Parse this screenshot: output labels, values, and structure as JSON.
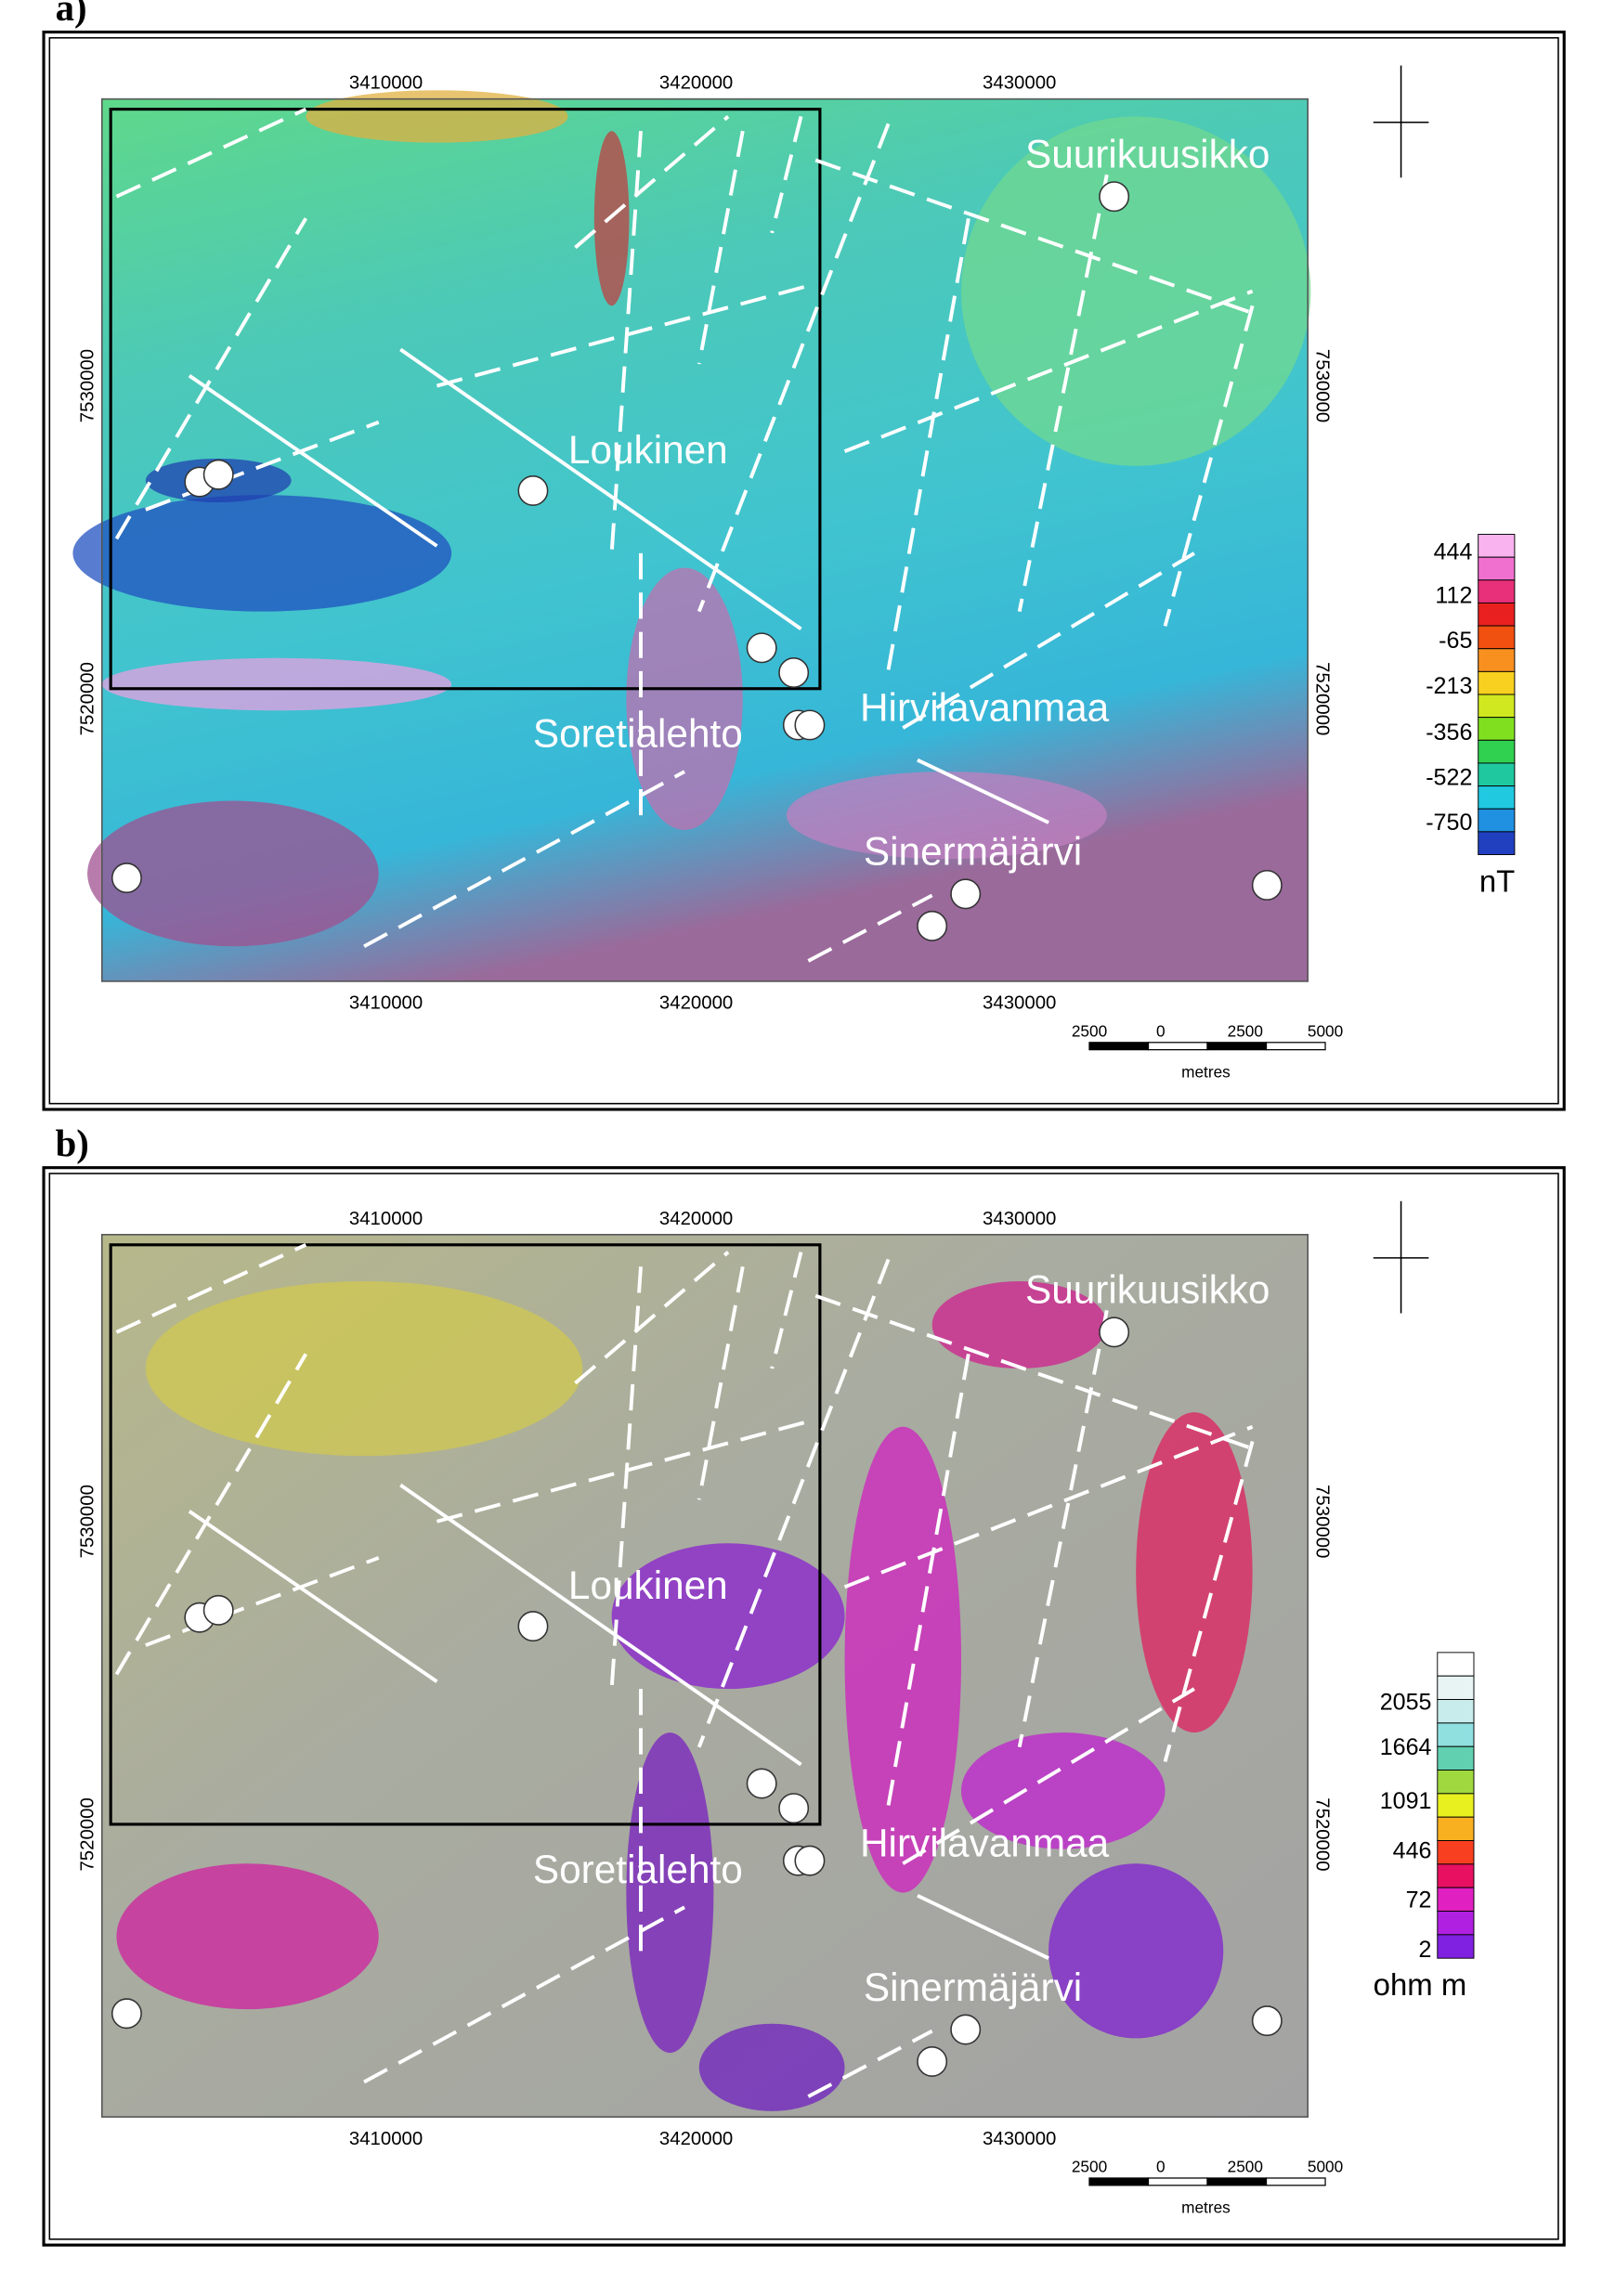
{
  "panels": [
    {
      "label": "a)",
      "x_ticks_top": [
        "3410000",
        "3420000",
        "3430000"
      ],
      "x_ticks_bottom": [
        "3410000",
        "3420000",
        "3430000"
      ],
      "y_ticks_left": [
        "7530000",
        "7520000"
      ],
      "y_ticks_right": [
        "7530000",
        "7520000"
      ],
      "places": [
        "Suurikuusikko",
        "Loukinen",
        "Hirvilavanmaa",
        "Soretialehto",
        "Sinermäjärvi"
      ],
      "legend": {
        "values": [
          "444",
          "112",
          "-65",
          "-213",
          "-356",
          "-522",
          "-750"
        ],
        "unit": "nT"
      },
      "scale_bar": {
        "labels": [
          "2500",
          "0",
          "2500",
          "5000"
        ],
        "unit": "metres"
      }
    },
    {
      "label": "b)",
      "x_ticks_top": [
        "3410000",
        "3420000",
        "3430000"
      ],
      "x_ticks_bottom": [
        "3410000",
        "3420000",
        "3430000"
      ],
      "y_ticks_left": [
        "7530000",
        "7520000"
      ],
      "y_ticks_right": [
        "7530000",
        "7520000"
      ],
      "places": [
        "Suurikuusikko",
        "Loukinen",
        "Hirvilavanmaa",
        "Soretialehto",
        "Sinermäjärvi"
      ],
      "legend": {
        "values": [
          "2055",
          "1664",
          "1091",
          "446",
          "72",
          "2"
        ],
        "unit": "ohm m"
      },
      "scale_bar": {
        "labels": [
          "2500",
          "0",
          "2500",
          "5000"
        ],
        "unit": "metres"
      }
    }
  ]
}
